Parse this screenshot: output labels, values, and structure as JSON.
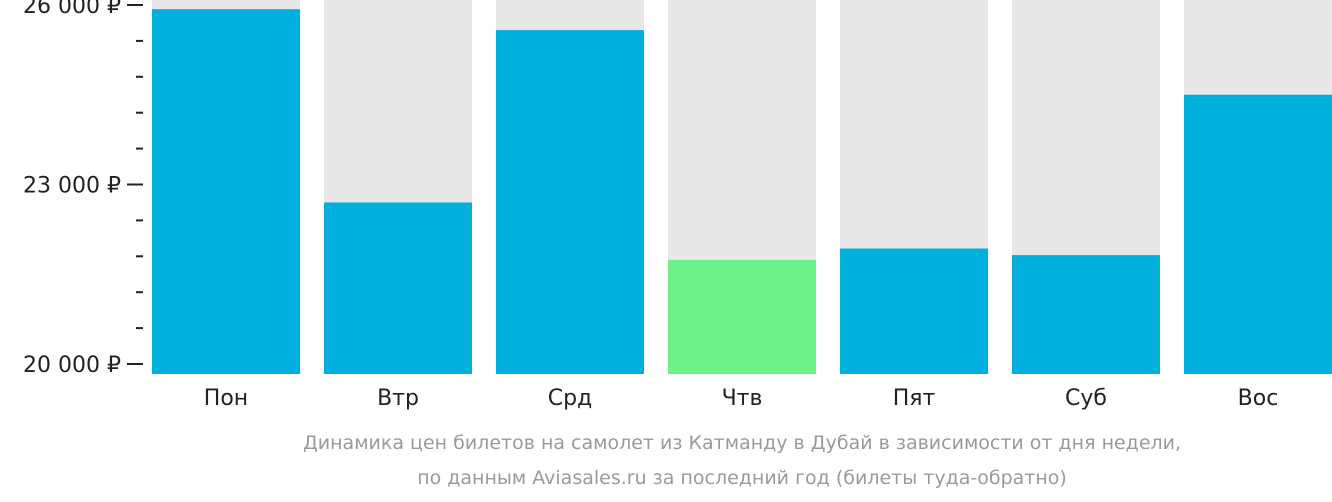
{
  "chart_data": {
    "type": "bar",
    "categories": [
      "Пон",
      "Втр",
      "Срд",
      "Чтв",
      "Пят",
      "Суб",
      "Вос"
    ],
    "values": [
      25930,
      22700,
      25580,
      21740,
      21930,
      21820,
      24500
    ],
    "ylim": [
      20000,
      26000
    ],
    "y_tick_labels": [
      "26 000 ₽",
      "23 000 ₽",
      "20 000 ₽"
    ],
    "y_tick_values": [
      26000,
      23000,
      20000
    ],
    "y_minor_step": 600,
    "highlight_index": 3,
    "colors": {
      "bar": "#00afdc",
      "highlight": "#6cf088",
      "background_column": "#e8e8e8",
      "axis": "#222222"
    },
    "grid": false,
    "legend": "none"
  },
  "caption": {
    "line1": "Динамика цен билетов на самолет из Катманду в Дубай в зависимости от дня недели,",
    "line2": "по данным Aviasales.ru за последний год (билеты туда-обратно)"
  }
}
